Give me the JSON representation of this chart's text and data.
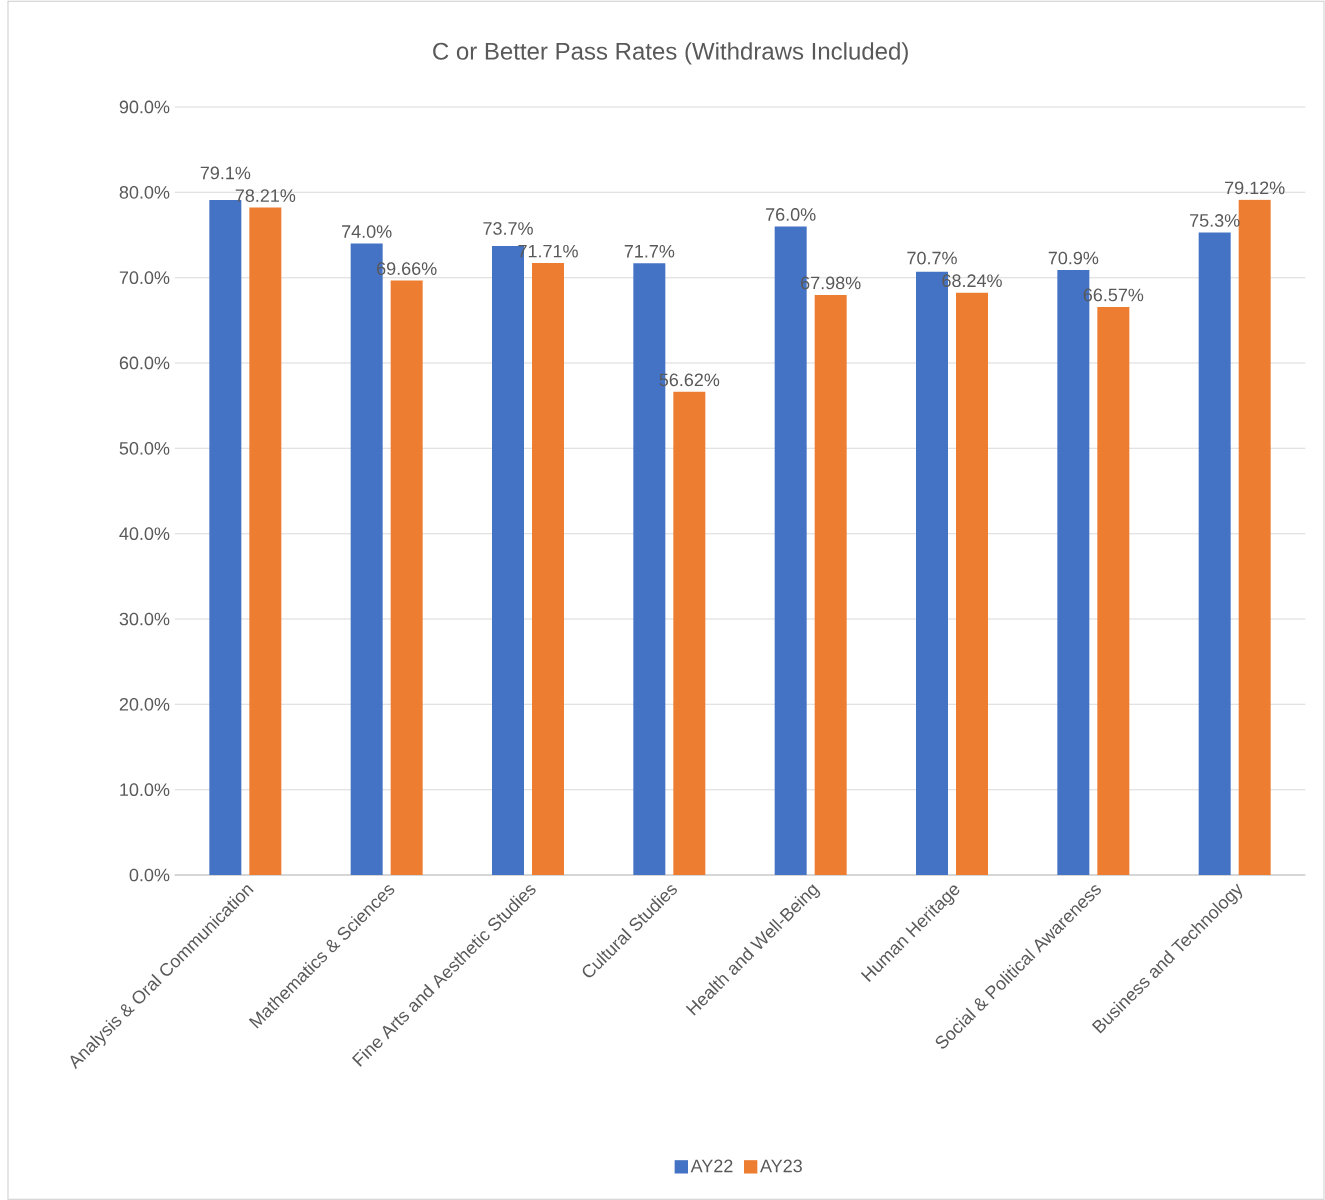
{
  "chart_data": {
    "type": "bar",
    "title": "C or Better Pass Rates (Withdraws Included)",
    "categories": [
      "Analysis & Oral Communication",
      "Mathematics & Sciences",
      "Fine Arts and Aesthetic Studies",
      "Cultural Studies",
      "Health and Well-Being",
      "Human Heritage",
      "Social & Political Awareness",
      "Business and Technology"
    ],
    "series": [
      {
        "name": "AY22",
        "color": "#4472c4",
        "values": [
          79.1,
          74.0,
          73.7,
          71.7,
          76.0,
          70.7,
          70.9,
          75.3
        ],
        "value_labels": [
          "79.1%",
          "74.0%",
          "73.7%",
          "71.7%",
          "76.0%",
          "70.7%",
          "70.9%",
          "75.3%"
        ]
      },
      {
        "name": "AY23",
        "color": "#ed7d31",
        "values": [
          78.21,
          69.66,
          71.71,
          56.62,
          67.98,
          68.24,
          66.57,
          79.12
        ],
        "value_labels": [
          "78.21%",
          "69.66%",
          "71.71%",
          "56.62%",
          "67.98%",
          "68.24%",
          "66.57%",
          "79.12%"
        ]
      }
    ],
    "ylim": [
      0,
      90
    ],
    "yticks": [
      {
        "value": 0,
        "label": "0.0%"
      },
      {
        "value": 10,
        "label": "10.0%"
      },
      {
        "value": 20,
        "label": "20.0%"
      },
      {
        "value": 30,
        "label": "30.0%"
      },
      {
        "value": 40,
        "label": "40.0%"
      },
      {
        "value": 50,
        "label": "50.0%"
      },
      {
        "value": 60,
        "label": "60.0%"
      },
      {
        "value": 70,
        "label": "70.0%"
      },
      {
        "value": 80,
        "label": "80.0%"
      },
      {
        "value": 90,
        "label": "90.0%"
      }
    ],
    "grid": "y",
    "legend": "bottom"
  }
}
